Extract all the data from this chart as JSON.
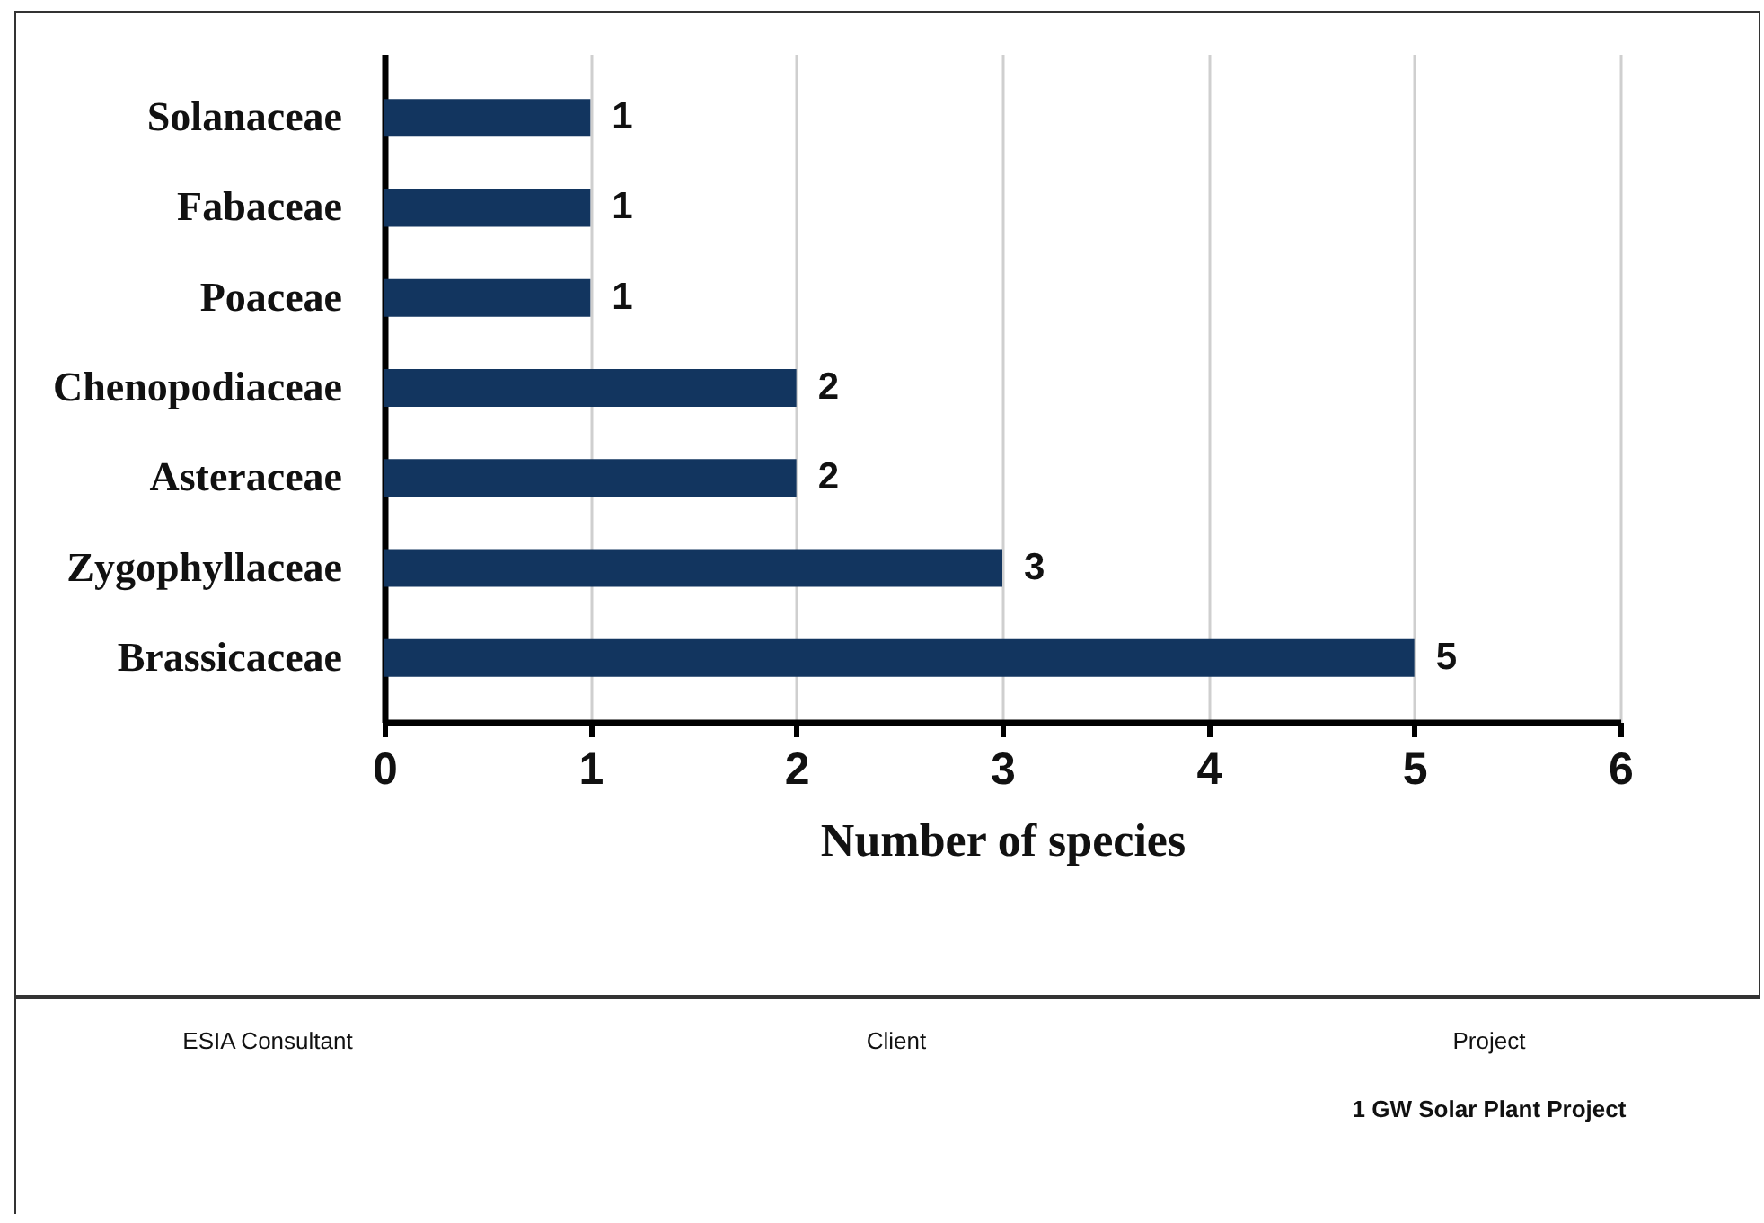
{
  "chart_data": {
    "type": "bar",
    "orientation": "horizontal",
    "xlabel": "Number of species",
    "categories": [
      "Solanaceae",
      "Fabaceae",
      "Poaceae",
      "Chenopodiaceae",
      "Asteraceae",
      "Zygophyllaceae",
      "Brassicaceae"
    ],
    "values": [
      1,
      1,
      1,
      2,
      2,
      3,
      5
    ],
    "color": "#12355f",
    "xlim": [
      0,
      6
    ],
    "xticks": [
      0,
      1,
      2,
      3,
      4,
      5,
      6
    ],
    "grid": "x",
    "data_labels": true,
    "annotations": [
      "ESIA Consultant",
      "Client",
      "Project",
      "1 GW Solar Plant Project"
    ]
  }
}
